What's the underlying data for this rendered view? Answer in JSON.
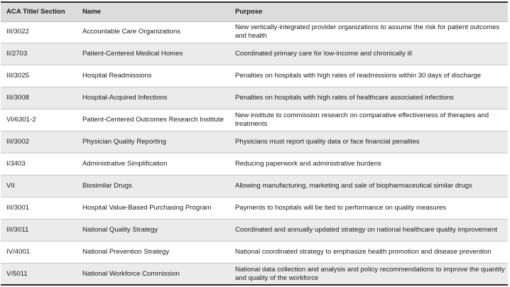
{
  "table": {
    "headers": [
      "ACA Title/ Section",
      "Name",
      "Purpose"
    ],
    "rows": [
      {
        "section": "III/3022",
        "name": "Accountable Care Organizations",
        "purpose": "New vertically-integrated provider organizations to assume the risk for patient outcomes and health"
      },
      {
        "section": "II/2703",
        "name": "Patient-Centered Medical Homes",
        "purpose": "Coordinated primary care for low-income and chronically ill"
      },
      {
        "section": "III/3025",
        "name": "Hospital Readmissions",
        "purpose": "Penalties on hospitals with high rates of readmissions within 30 days of discharge"
      },
      {
        "section": "III/3008",
        "name": "Hospital-Acquired Infections",
        "purpose": "Penalties on hospitals with high rates of healthcare associated infections"
      },
      {
        "section": "VI/6301-2",
        "name": "Patient-Centered Outcomes Research Institute",
        "purpose": "New institute to commission research on comparative effectiveness of therapies and treatments"
      },
      {
        "section": "III/3002",
        "name": "Physician Quality Reporting",
        "purpose": "Physicians must report quality data or face financial penalties"
      },
      {
        "section": "I/3403",
        "name": "Administrative Simplification",
        "purpose": "Reducing paperwork and administrative burdens"
      },
      {
        "section": "VII",
        "name": "Biosimilar Drugs",
        "purpose": "Allowing manufacturing, marketing and sale of biopharmaceutical similar drugs"
      },
      {
        "section": "III/3001",
        "name": "Hospital Value-Based Purchasing Program",
        "purpose": "Payments to hospitals will be tied to performance on quality measures"
      },
      {
        "section": "III/3011",
        "name": "National Quality Strategy",
        "purpose": "Coordinated and annually updated strategy on national healthcare quality improvement"
      },
      {
        "section": "IV/4001",
        "name": "National Prevention Strategy",
        "purpose": "National coordinated strategy to emphasize health promotion and disease prevention"
      },
      {
        "section": "V/5011",
        "name": "National Workforce Commission",
        "purpose": "National data collection and analysis and policy recommendations to improve the quantity and quality of the workforce"
      }
    ]
  }
}
